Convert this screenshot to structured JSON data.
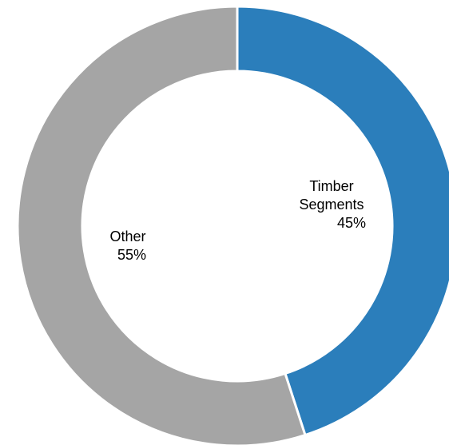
{
  "chart_data": {
    "type": "donut",
    "categories": [
      "Timber Segments",
      "Other"
    ],
    "values": [
      45,
      55
    ],
    "value_labels": [
      "45%",
      "55%"
    ],
    "colors": [
      "#2b7ebb",
      "#a5a5a5"
    ]
  }
}
